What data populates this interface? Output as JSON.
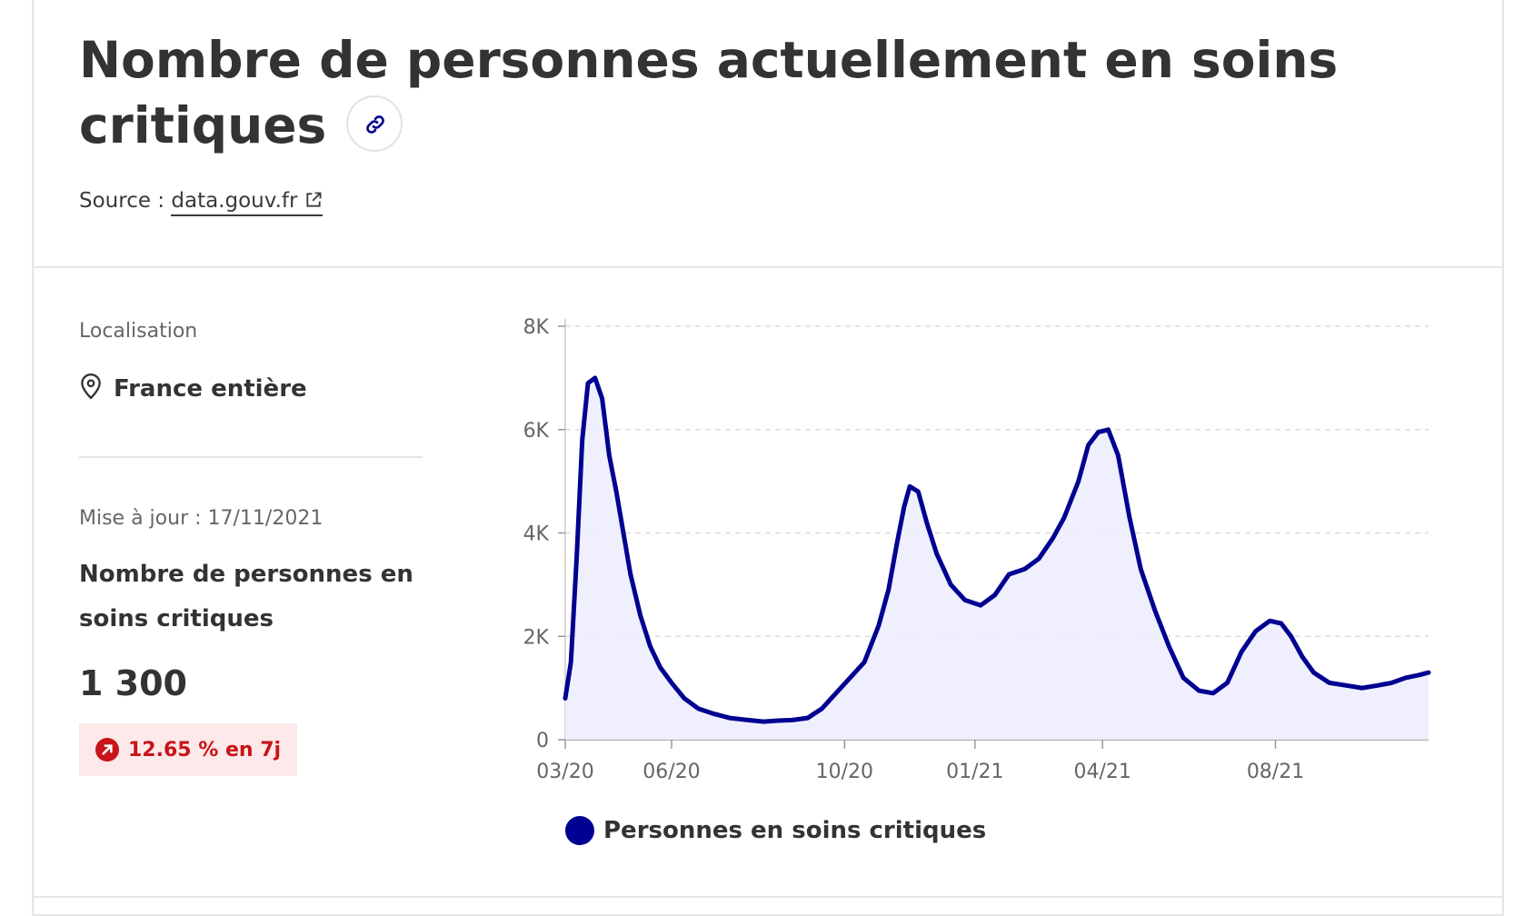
{
  "header": {
    "title": "Nombre de personnes actuellement en soins critiques",
    "source_label": "Source :",
    "source_link": "data.gouv.fr"
  },
  "sidebar": {
    "location_label": "Localisation",
    "location_value": "France entière",
    "update_label": "Mise à jour : 17/11/2021",
    "metric_title": "Nombre de personnes en soins critiques",
    "metric_value": "1 300",
    "trend": "12.65 % en 7j"
  },
  "colors": {
    "line": "#000091",
    "area": "#ececfe",
    "trend_text": "#c8141a",
    "trend_bg": "#fde9e9"
  },
  "icons": {
    "title_link": "link-icon",
    "source_external": "external-link-icon",
    "location": "map-pin-icon",
    "trend": "arrow-up-right-icon"
  },
  "chart_data": {
    "type": "area",
    "title": "",
    "xlabel": "",
    "ylabel": "",
    "x_ticks": [
      "03/20",
      "06/20",
      "10/20",
      "01/21",
      "04/21",
      "08/21"
    ],
    "y_ticks": [
      "0",
      "2K",
      "4K",
      "6K",
      "8K"
    ],
    "ylim": [
      0,
      8000
    ],
    "grid": "horizontal dashed",
    "legend": "bottom",
    "series": [
      {
        "name": "Personnes en soins critiques",
        "x": [
          "2020-03-18",
          "2020-03-22",
          "2020-03-26",
          "2020-03-30",
          "2020-04-03",
          "2020-04-08",
          "2020-04-13",
          "2020-04-18",
          "2020-04-23",
          "2020-04-28",
          "2020-05-03",
          "2020-05-10",
          "2020-05-17",
          "2020-05-24",
          "2020-06-01",
          "2020-06-10",
          "2020-06-20",
          "2020-07-01",
          "2020-07-12",
          "2020-07-25",
          "2020-08-05",
          "2020-08-15",
          "2020-08-25",
          "2020-09-05",
          "2020-09-15",
          "2020-09-25",
          "2020-10-05",
          "2020-10-15",
          "2020-10-25",
          "2020-11-01",
          "2020-11-07",
          "2020-11-12",
          "2020-11-16",
          "2020-11-22",
          "2020-11-28",
          "2020-12-05",
          "2020-12-15",
          "2020-12-25",
          "2021-01-05",
          "2021-01-15",
          "2021-01-25",
          "2021-02-05",
          "2021-02-15",
          "2021-02-25",
          "2021-03-05",
          "2021-03-15",
          "2021-03-22",
          "2021-03-29",
          "2021-04-05",
          "2021-04-12",
          "2021-04-20",
          "2021-04-28",
          "2021-05-08",
          "2021-05-18",
          "2021-05-28",
          "2021-06-08",
          "2021-06-18",
          "2021-06-28",
          "2021-07-08",
          "2021-07-18",
          "2021-07-28",
          "2021-08-05",
          "2021-08-12",
          "2021-08-20",
          "2021-08-28",
          "2021-09-08",
          "2021-09-20",
          "2021-10-01",
          "2021-10-12",
          "2021-10-22",
          "2021-11-01",
          "2021-11-10",
          "2021-11-17"
        ],
        "y": [
          800,
          1500,
          3500,
          5800,
          6900,
          7000,
          6600,
          5500,
          4800,
          4000,
          3200,
          2400,
          1800,
          1400,
          1100,
          800,
          600,
          500,
          420,
          380,
          350,
          370,
          380,
          420,
          600,
          900,
          1200,
          1500,
          2200,
          2900,
          3800,
          4500,
          4900,
          4800,
          4200,
          3600,
          3000,
          2700,
          2600,
          2800,
          3200,
          3300,
          3500,
          3900,
          4300,
          5000,
          5700,
          5950,
          6000,
          5500,
          4300,
          3300,
          2500,
          1800,
          1200,
          950,
          900,
          1100,
          1700,
          2100,
          2300,
          2250,
          2000,
          1600,
          1300,
          1100,
          1050,
          1000,
          1050,
          1100,
          1200,
          1250,
          1300
        ]
      }
    ]
  }
}
